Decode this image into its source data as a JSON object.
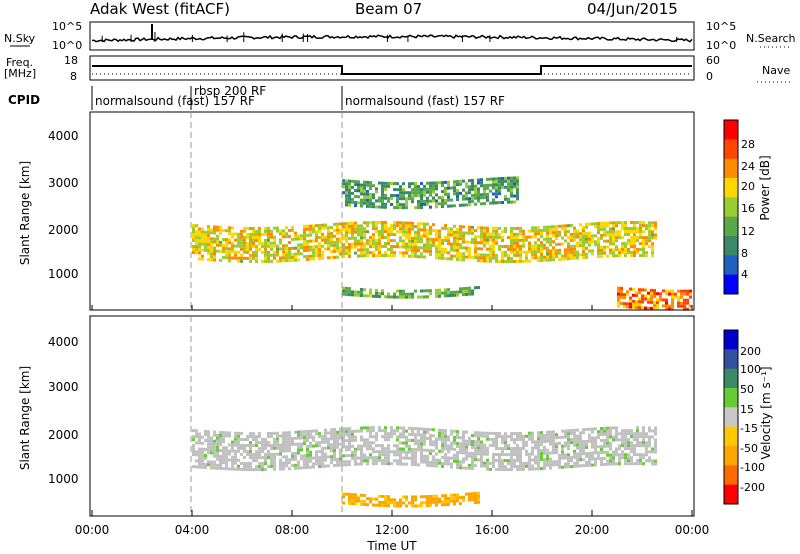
{
  "header": {
    "station": "Adak West (fitACF)",
    "beam": "Beam 07",
    "date": "04/Jun/2015"
  },
  "noise_panel": {
    "left_label": "N.Sky",
    "left_ticks": [
      "10^5",
      "10^0"
    ],
    "right_ticks": [
      "10^5",
      "10^0"
    ],
    "right_label": "N.Search"
  },
  "freq_panel": {
    "left_label_top": "Freq.",
    "left_label_bottom": "[MHz]",
    "left_ticks": [
      "18",
      "8"
    ],
    "right_ticks": [
      "60",
      "0"
    ],
    "right_label": "Nave"
  },
  "cpid": {
    "label": "CPID",
    "segments": [
      {
        "start_hr": 0,
        "end_hr": 4,
        "text": "normalsound (fast) 157 RF"
      },
      {
        "start_hr": 4,
        "end_hr": 10,
        "text": "rbsp 200 RF"
      },
      {
        "start_hr": 10,
        "end_hr": 24,
        "text": "normalsound (fast) 157 RF"
      }
    ]
  },
  "x_axis": {
    "label": "Time UT",
    "ticks": [
      "00:00",
      "04:00",
      "08:00",
      "12:00",
      "16:00",
      "20:00",
      "00:00"
    ]
  },
  "power_panel": {
    "ylabel": "Slant Range [km]",
    "yticks": [
      "4000",
      "3000",
      "2000",
      "1000"
    ],
    "cbar_label": "Power [dB]",
    "cbar_ticks": [
      "28",
      "24",
      "20",
      "16",
      "12",
      "8",
      "4"
    ]
  },
  "velocity_panel": {
    "ylabel": "Slant Range [km]",
    "yticks": [
      "4000",
      "3000",
      "2000",
      "1000"
    ],
    "cbar_label": "Velocity [m s⁻¹]",
    "cbar_ticks": [
      "200",
      "100",
      "50",
      "15",
      "-15",
      "-50",
      "-100",
      "-200"
    ]
  },
  "colors": {
    "power_scale": [
      "#0000ff",
      "#2060c0",
      "#3a8a6a",
      "#5aa84a",
      "#9acd32",
      "#ffd700",
      "#ff8c00",
      "#ff4500",
      "#ff0000"
    ],
    "velocity_scale": [
      "#ff0000",
      "#ff6a00",
      "#ffa500",
      "#ffc800",
      "#c8c8c8",
      "#66cc33",
      "#3a8a6a",
      "#3050a0",
      "#0000cc"
    ],
    "ground_scatter": "#c0c0c0"
  },
  "chart_data": [
    {
      "type": "rti",
      "title": "Adak West (fitACF)",
      "quantity": "Power [dB]",
      "xlabel": "Time UT",
      "ylabel": "Slant Range [km]",
      "xlim_hours": [
        0,
        24
      ],
      "ylim_km": [
        180,
        4600
      ],
      "zlim": [
        0,
        30
      ],
      "features": [
        {
          "name": "upper band",
          "t_start": 10,
          "t_end": 17,
          "range_km": [
            2550,
            3100
          ],
          "power_db": 10
        },
        {
          "name": "main band",
          "t_start": 4,
          "t_end": 22.5,
          "range_km": [
            1300,
            2100
          ],
          "power_db": 18
        },
        {
          "name": "low band",
          "t_start": 10,
          "t_end": 15.5,
          "range_km": [
            500,
            700
          ],
          "power_db": 12
        },
        {
          "name": "near range late",
          "t_start": 21,
          "t_end": 24,
          "range_km": [
            250,
            700
          ],
          "power_db": 24
        }
      ]
    },
    {
      "type": "rti",
      "quantity": "Velocity [m s⁻¹]",
      "xlabel": "Time UT",
      "ylabel": "Slant Range [km]",
      "xlim_hours": [
        0,
        24
      ],
      "ylim_km": [
        180,
        4600
      ],
      "zlim": [
        -200,
        200
      ],
      "features": [
        {
          "name": "main band",
          "t_start": 4,
          "t_end": 22.5,
          "range_km": [
            1300,
            2100
          ],
          "velocity": 0
        },
        {
          "name": "low band",
          "t_start": 10,
          "t_end": 15.5,
          "range_km": [
            500,
            700
          ],
          "velocity": -50
        }
      ]
    }
  ]
}
